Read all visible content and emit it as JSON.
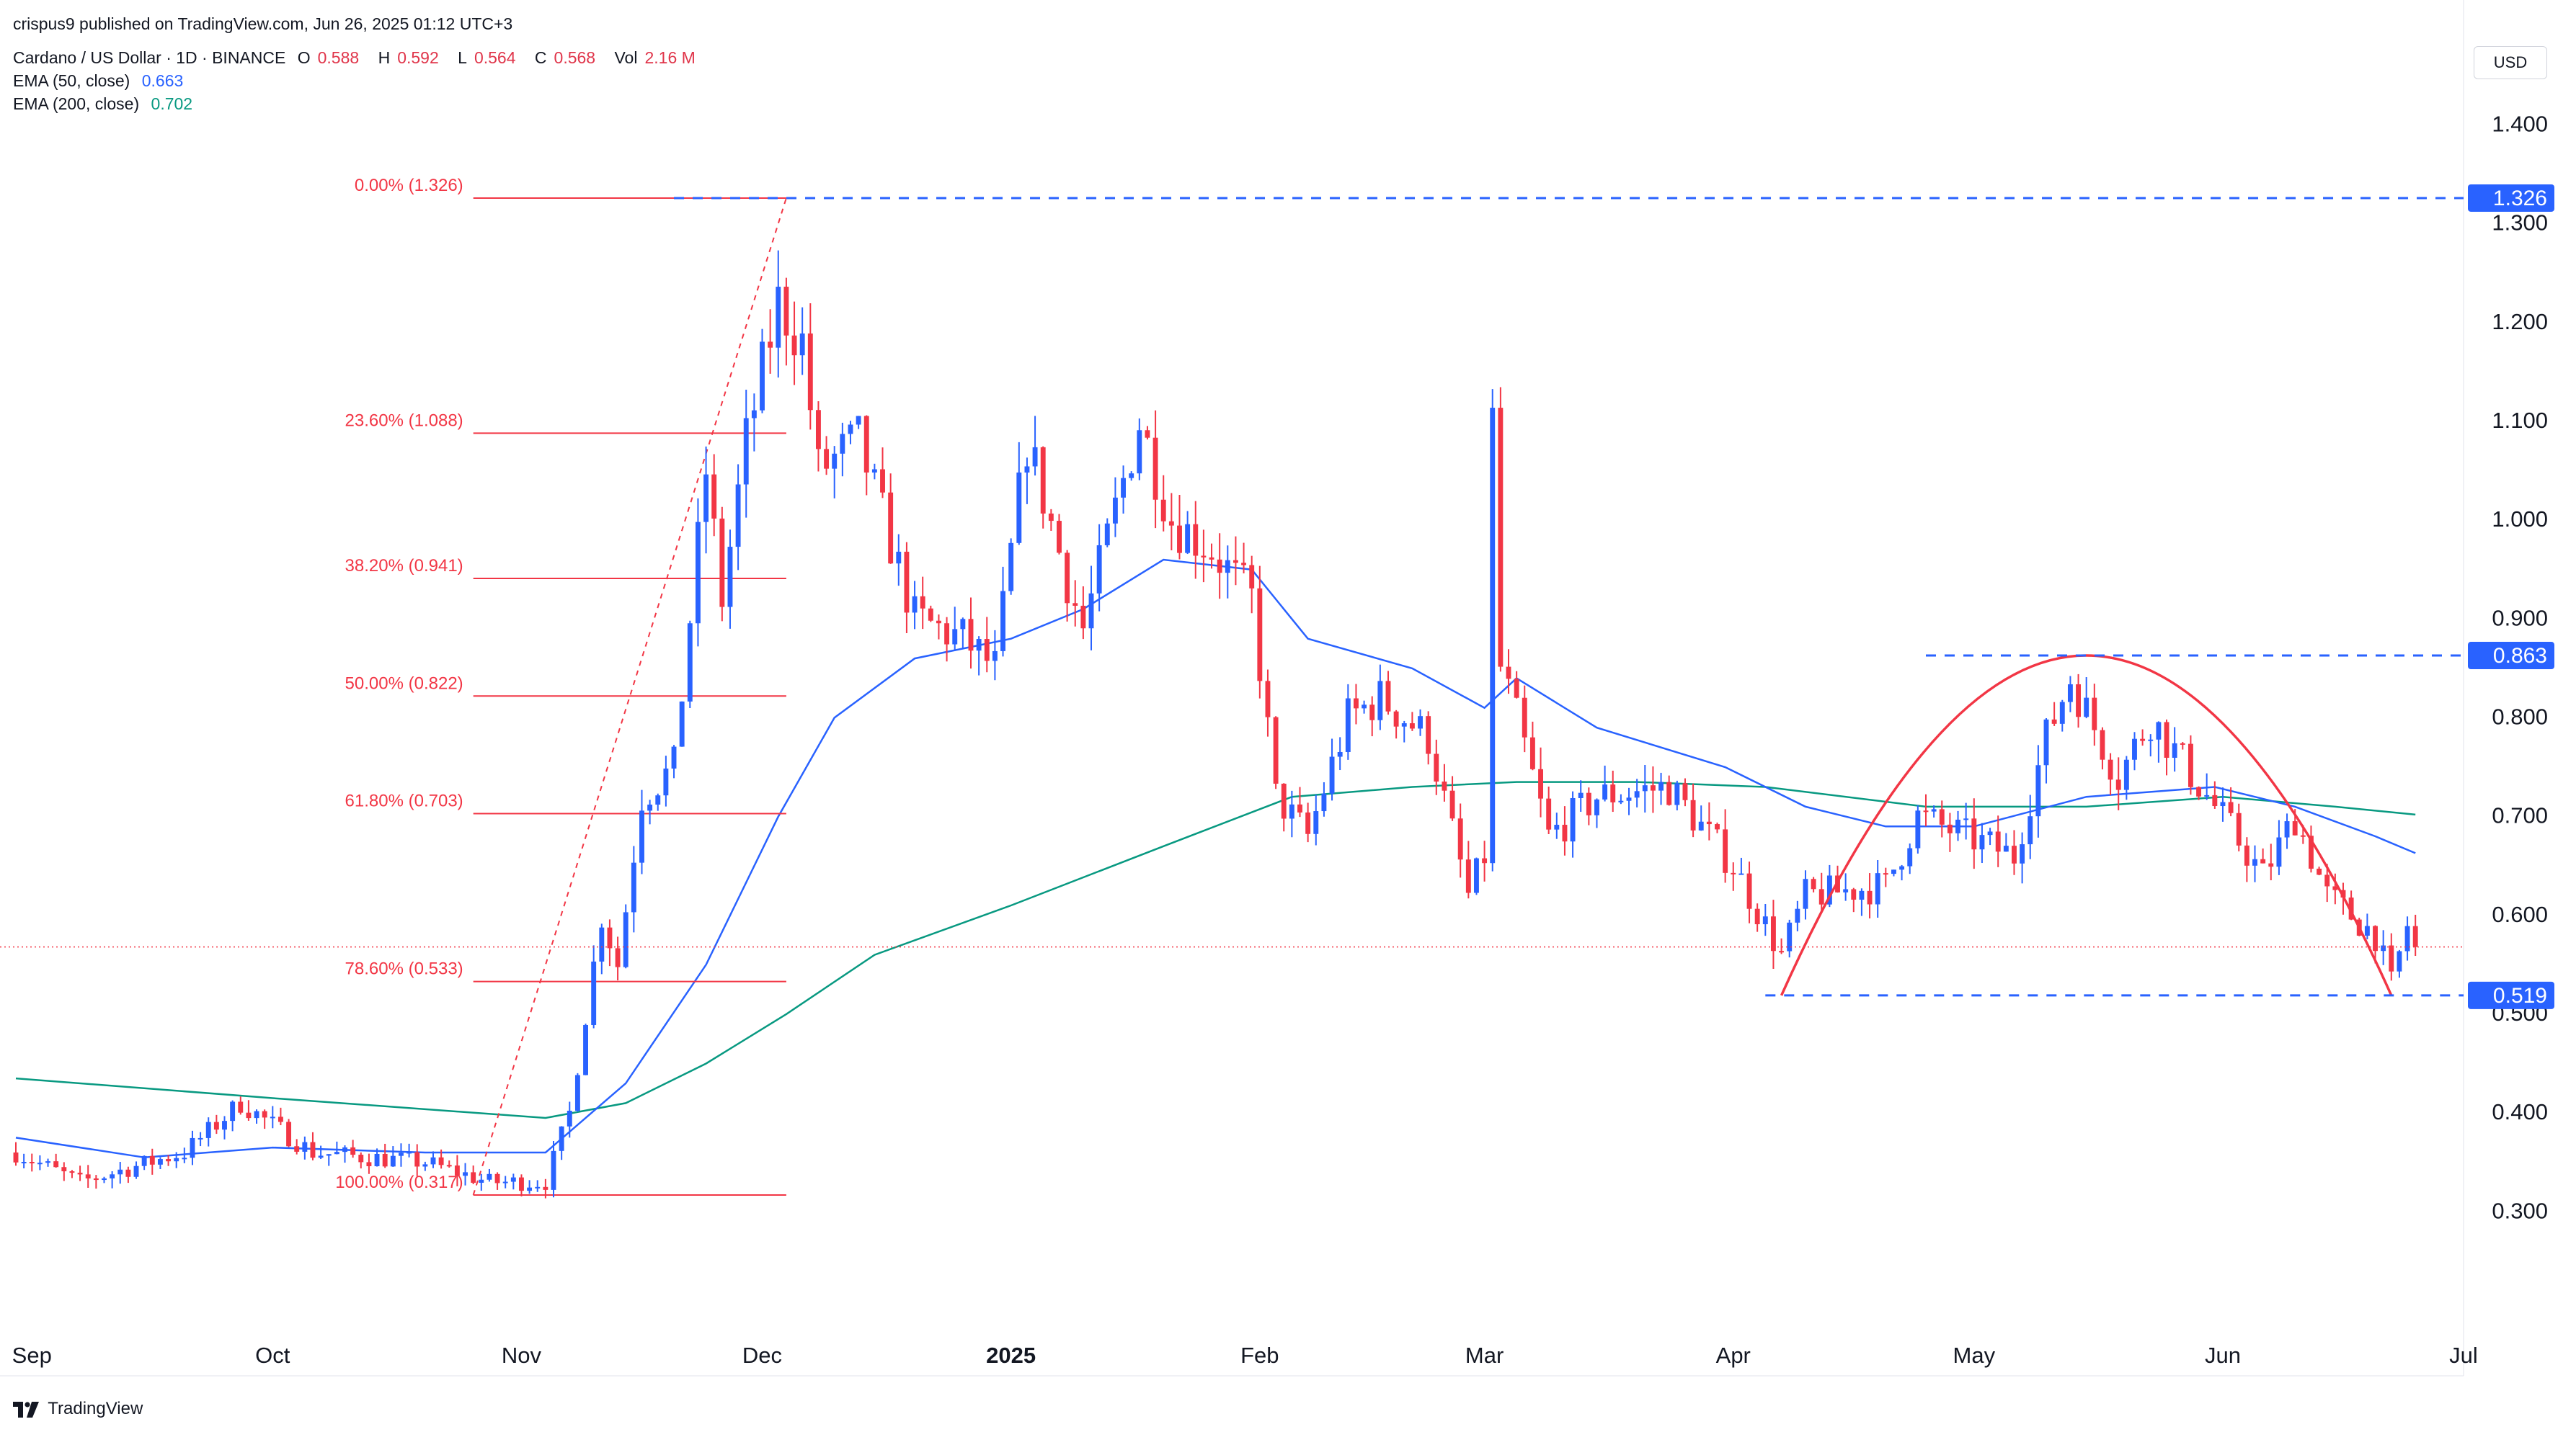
{
  "header": {
    "publisher": "crispus9 published on TradingView.com, Jun 26, 2025 01:12 UTC+3"
  },
  "legend": {
    "symbol": "Cardano / US Dollar · 1D · BINANCE",
    "ohlc": [
      {
        "k": "O",
        "v": "0.588"
      },
      {
        "k": "H",
        "v": "0.592"
      },
      {
        "k": "L",
        "v": "0.564"
      },
      {
        "k": "C",
        "v": "0.568"
      },
      {
        "k": "Vol",
        "v": "2.16 M"
      }
    ],
    "ema50_label": "EMA (50, close)",
    "ema50_value": "0.663",
    "ema200_label": "EMA (200, close)",
    "ema200_value": "0.702"
  },
  "currency": "USD",
  "branding": "TradingView",
  "colors": {
    "up": "#2962ff",
    "down": "#f23645",
    "ema50": "#2962ff",
    "ema200": "#089981",
    "fib": "#f23645",
    "level": "#2962ff",
    "pattern": "#f23645"
  },
  "chart_data": {
    "type": "candlestick",
    "title": "Cardano / US Dollar · 1D · BINANCE",
    "x_start": "2024-08-30",
    "x_end": "2025-07-01",
    "ylim": [
      0.185,
      1.49
    ],
    "y_ticks": [
      "1.400",
      "1.300",
      "1.200",
      "1.100",
      "1.000",
      "0.900",
      "0.800",
      "0.700",
      "0.600",
      "0.500",
      "0.400",
      "0.300"
    ],
    "y_tick_values": [
      1.4,
      1.3,
      1.2,
      1.1,
      1.0,
      0.9,
      0.8,
      0.7,
      0.6,
      0.5,
      0.4,
      0.3
    ],
    "x_ticks": [
      {
        "label": "Sep",
        "date": "2024-09-01",
        "bold": false
      },
      {
        "label": "Oct",
        "date": "2024-10-01",
        "bold": false
      },
      {
        "label": "Nov",
        "date": "2024-11-01",
        "bold": false
      },
      {
        "label": "Dec",
        "date": "2024-12-01",
        "bold": false
      },
      {
        "label": "2025",
        "date": "2025-01-01",
        "bold": true
      },
      {
        "label": "Feb",
        "date": "2025-02-01",
        "bold": false
      },
      {
        "label": "Mar",
        "date": "2025-03-01",
        "bold": false
      },
      {
        "label": "Apr",
        "date": "2025-04-01",
        "bold": false
      },
      {
        "label": "May",
        "date": "2025-05-01",
        "bold": false
      },
      {
        "label": "Jun",
        "date": "2025-06-01",
        "bold": false
      },
      {
        "label": "Jul",
        "date": "2025-07-01",
        "bold": false
      }
    ],
    "last_price": 0.568,
    "candle_path": [
      [
        "2024-08-30",
        0.36
      ],
      [
        "2024-09-07",
        0.33
      ],
      [
        "2024-09-20",
        0.36
      ],
      [
        "2024-09-27",
        0.41
      ],
      [
        "2024-10-06",
        0.36
      ],
      [
        "2024-10-20",
        0.35
      ],
      [
        "2024-10-28",
        0.33
      ],
      [
        "2024-11-04",
        0.33
      ],
      [
        "2024-11-07",
        0.4
      ],
      [
        "2024-11-11",
        0.6
      ],
      [
        "2024-11-13",
        0.55
      ],
      [
        "2024-11-16",
        0.72
      ],
      [
        "2024-11-20",
        0.75
      ],
      [
        "2024-11-24",
        1.05
      ],
      [
        "2024-11-26",
        0.92
      ],
      [
        "2024-11-29",
        1.08
      ],
      [
        "2024-12-03",
        1.22
      ],
      [
        "2024-12-06",
        1.18
      ],
      [
        "2024-12-08",
        1.05
      ],
      [
        "2024-12-13",
        1.08
      ],
      [
        "2024-12-20",
        0.9
      ],
      [
        "2024-12-26",
        0.88
      ],
      [
        "2024-12-30",
        0.85
      ],
      [
        "2025-01-03",
        1.08
      ],
      [
        "2025-01-08",
        0.94
      ],
      [
        "2025-01-10",
        0.89
      ],
      [
        "2025-01-17",
        1.1
      ],
      [
        "2025-01-21",
        1.0
      ],
      [
        "2025-01-26",
        0.97
      ],
      [
        "2025-01-31",
        0.92
      ],
      [
        "2025-02-03",
        0.72
      ],
      [
        "2025-02-07",
        0.68
      ],
      [
        "2025-02-12",
        0.8
      ],
      [
        "2025-02-16",
        0.82
      ],
      [
        "2025-02-22",
        0.78
      ],
      [
        "2025-02-27",
        0.62
      ],
      [
        "2025-03-01",
        0.66
      ],
      [
        "2025-03-02",
        1.1
      ],
      [
        "2025-03-03",
        0.85
      ],
      [
        "2025-03-05",
        0.8
      ],
      [
        "2025-03-09",
        0.68
      ],
      [
        "2025-03-15",
        0.72
      ],
      [
        "2025-03-24",
        0.73
      ],
      [
        "2025-04-01",
        0.65
      ],
      [
        "2025-04-07",
        0.56
      ],
      [
        "2025-04-10",
        0.62
      ],
      [
        "2025-04-20",
        0.63
      ],
      [
        "2025-04-24",
        0.7
      ],
      [
        "2025-05-06",
        0.66
      ],
      [
        "2025-05-10",
        0.78
      ],
      [
        "2025-05-13",
        0.84
      ],
      [
        "2025-05-19",
        0.74
      ],
      [
        "2025-05-23",
        0.8
      ],
      [
        "2025-05-31",
        0.71
      ],
      [
        "2025-06-06",
        0.64
      ],
      [
        "2025-06-10",
        0.7
      ],
      [
        "2025-06-14",
        0.62
      ],
      [
        "2025-06-20",
        0.58
      ],
      [
        "2025-06-22",
        0.53
      ],
      [
        "2025-06-24",
        0.59
      ],
      [
        "2025-06-25",
        0.568
      ]
    ],
    "ema50": [
      [
        "2024-08-30",
        0.375
      ],
      [
        "2024-09-15",
        0.355
      ],
      [
        "2024-10-01",
        0.365
      ],
      [
        "2024-10-20",
        0.36
      ],
      [
        "2024-11-04",
        0.36
      ],
      [
        "2024-11-14",
        0.43
      ],
      [
        "2024-11-24",
        0.55
      ],
      [
        "2024-12-03",
        0.7
      ],
      [
        "2024-12-10",
        0.8
      ],
      [
        "2024-12-20",
        0.86
      ],
      [
        "2025-01-01",
        0.88
      ],
      [
        "2025-01-10",
        0.91
      ],
      [
        "2025-01-20",
        0.96
      ],
      [
        "2025-01-31",
        0.95
      ],
      [
        "2025-02-07",
        0.88
      ],
      [
        "2025-02-20",
        0.85
      ],
      [
        "2025-03-01",
        0.81
      ],
      [
        "2025-03-05",
        0.84
      ],
      [
        "2025-03-15",
        0.79
      ],
      [
        "2025-03-31",
        0.75
      ],
      [
        "2025-04-10",
        0.71
      ],
      [
        "2025-04-20",
        0.69
      ],
      [
        "2025-05-01",
        0.69
      ],
      [
        "2025-05-15",
        0.72
      ],
      [
        "2025-05-31",
        0.73
      ],
      [
        "2025-06-10",
        0.71
      ],
      [
        "2025-06-20",
        0.68
      ],
      [
        "2025-06-25",
        0.663
      ]
    ],
    "ema200": [
      [
        "2024-08-30",
        0.435
      ],
      [
        "2024-10-01",
        0.415
      ],
      [
        "2024-11-04",
        0.395
      ],
      [
        "2024-11-14",
        0.41
      ],
      [
        "2024-11-24",
        0.45
      ],
      [
        "2024-12-04",
        0.5
      ],
      [
        "2024-12-15",
        0.56
      ],
      [
        "2025-01-01",
        0.61
      ],
      [
        "2025-01-20",
        0.67
      ],
      [
        "2025-02-05",
        0.72
      ],
      [
        "2025-02-20",
        0.73
      ],
      [
        "2025-03-05",
        0.735
      ],
      [
        "2025-03-20",
        0.735
      ],
      [
        "2025-04-05",
        0.73
      ],
      [
        "2025-04-25",
        0.71
      ],
      [
        "2025-05-15",
        0.71
      ],
      [
        "2025-06-01",
        0.72
      ],
      [
        "2025-06-15",
        0.71
      ],
      [
        "2025-06-25",
        0.702
      ]
    ],
    "fibonacci": [
      {
        "label": "0.00% (1.326)",
        "price": 1.326
      },
      {
        "label": "23.60% (1.088)",
        "price": 1.088
      },
      {
        "label": "38.20% (0.941)",
        "price": 0.941
      },
      {
        "label": "50.00% (0.822)",
        "price": 0.822
      },
      {
        "label": "61.80% (0.703)",
        "price": 0.703
      },
      {
        "label": "78.60% (0.533)",
        "price": 0.533
      },
      {
        "label": "100.00% (0.317)",
        "price": 0.317
      }
    ],
    "fib_range": {
      "start": "2024-10-26",
      "end": "2024-12-04"
    },
    "trend_line": {
      "from": [
        "2024-10-26",
        0.317
      ],
      "to": [
        "2024-12-04",
        1.326
      ]
    },
    "horizontal_levels": [
      {
        "label": "1.326",
        "price": 1.326,
        "from": "2024-11-20"
      },
      {
        "label": "0.863",
        "price": 0.863,
        "from": "2025-04-25"
      },
      {
        "label": "0.519",
        "price": 0.519,
        "from": "2025-04-05"
      }
    ],
    "cup_arc": {
      "start": [
        "2025-04-07",
        0.519
      ],
      "peak": [
        "2025-05-15",
        0.863
      ],
      "end": [
        "2025-06-22",
        0.519
      ]
    }
  }
}
